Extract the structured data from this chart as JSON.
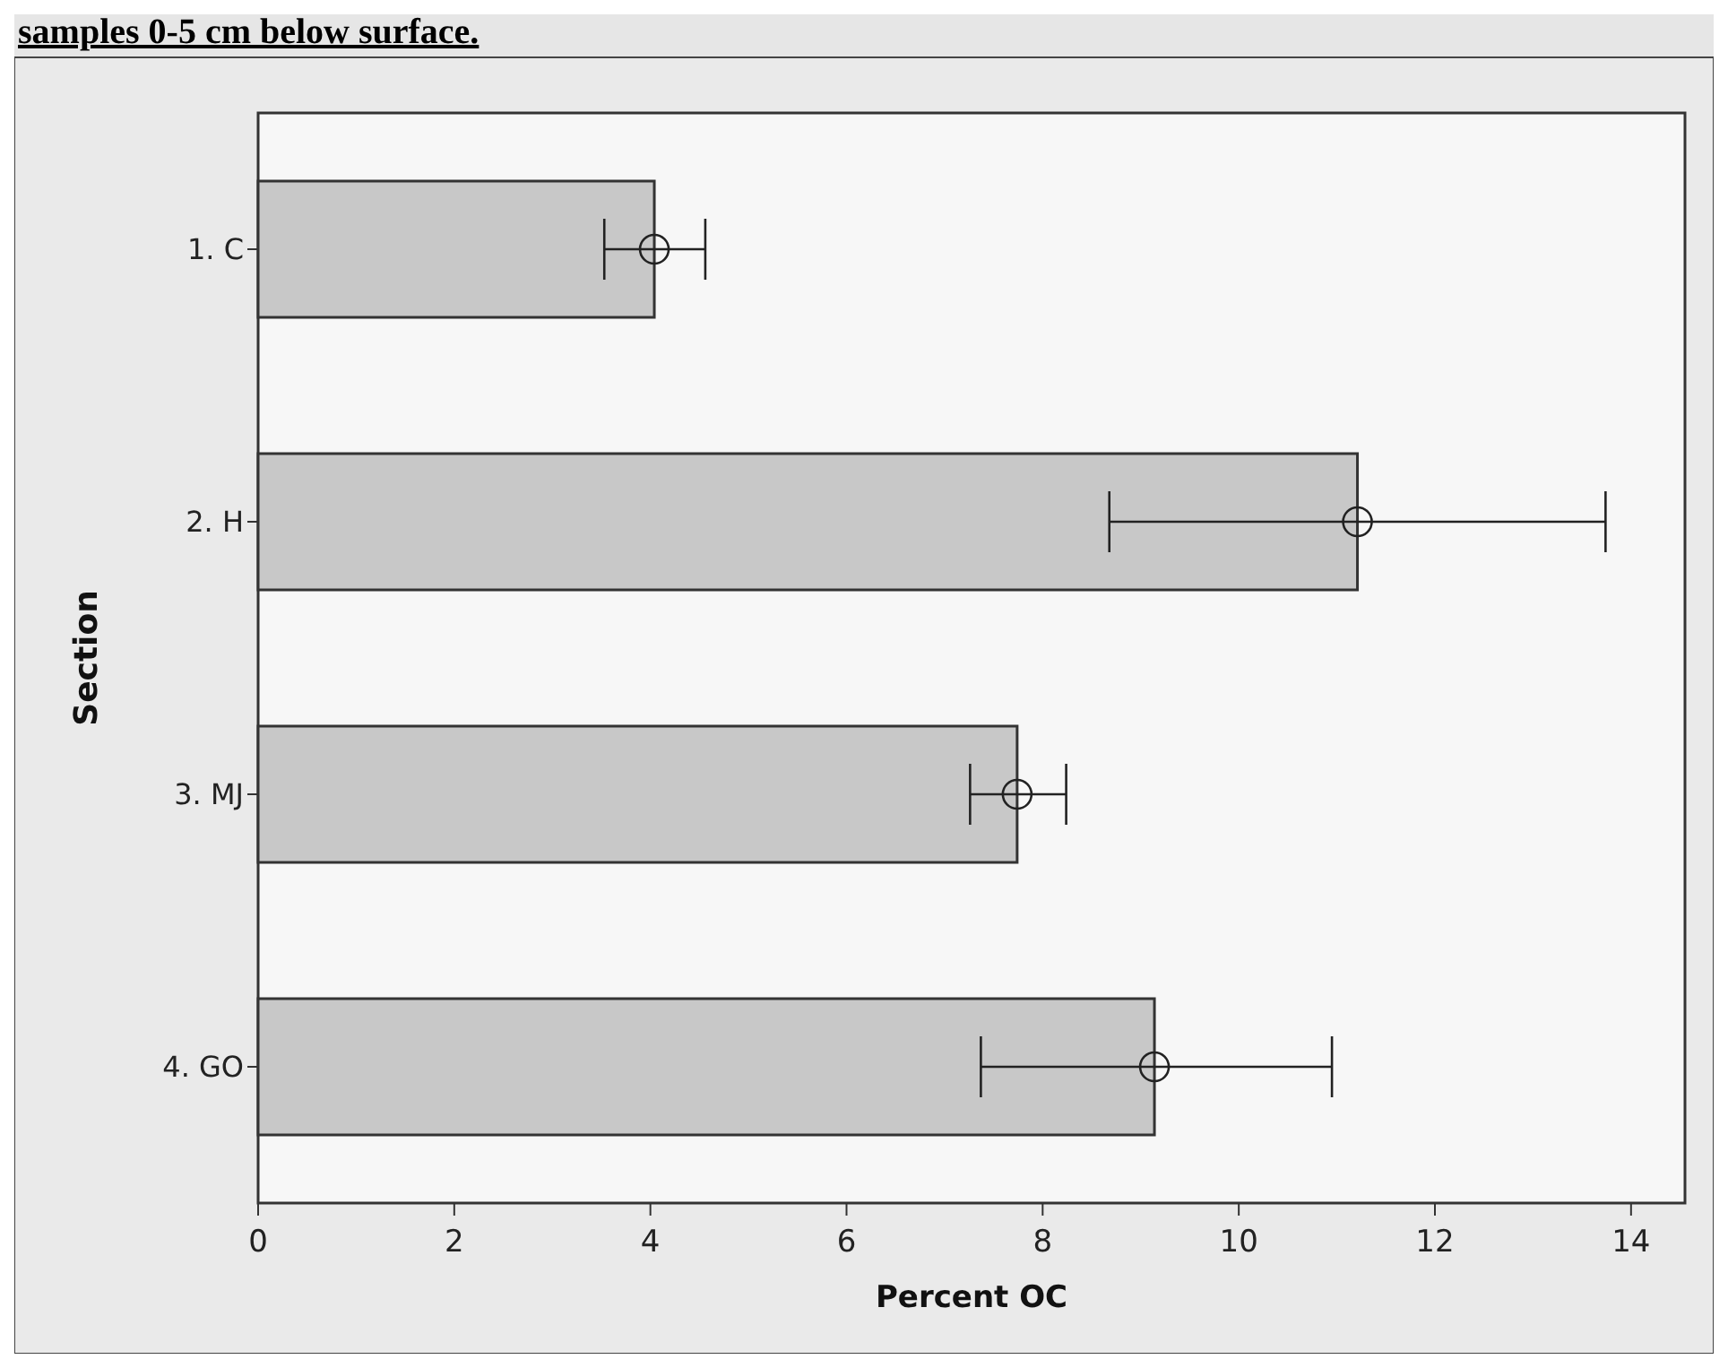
{
  "chart_data": {
    "type": "bar",
    "orientation": "horizontal",
    "title": "samples 0-5 cm below surface.",
    "xlabel": "Percent OC",
    "ylabel": "Section",
    "categories": [
      "1. C",
      "2. H",
      "3. MJ",
      "4. GO"
    ],
    "series": [
      {
        "color": "#c8c8c8",
        "values": [
          4.04,
          11.21,
          7.74,
          9.14
        ],
        "errors": [
          [
            3.53,
            4.56
          ],
          [
            8.68,
            13.74
          ],
          [
            7.26,
            8.24
          ],
          [
            7.37,
            10.95
          ]
        ]
      },
      {
        "type": "scatter",
        "color": "#222222",
        "x": [
          "1. C",
          "2. H",
          "3. MJ",
          "4. GO"
        ],
        "values": [
          4.04,
          11.21,
          7.74,
          9.14
        ]
      }
    ],
    "marker": "circle",
    "xlim": [
      0,
      14.55
    ],
    "xticks": [
      0,
      2,
      4,
      6,
      8,
      10,
      12,
      14
    ],
    "grid": false
  }
}
